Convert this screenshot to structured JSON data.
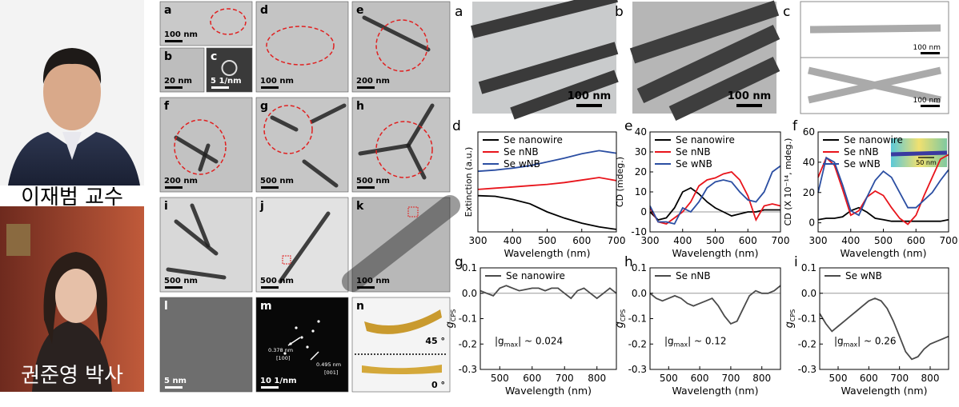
{
  "portraits": [
    {
      "caption": "이재범 교수"
    },
    {
      "caption": "권준영 박사"
    }
  ],
  "micrographs": [
    {
      "panel": "a",
      "scale": "100 nm"
    },
    {
      "panel": "b",
      "scale": "20 nm"
    },
    {
      "panel": "c",
      "scale": "5 1/nm"
    },
    {
      "panel": "d",
      "scale": "100 nm"
    },
    {
      "panel": "e",
      "scale": "200 nm"
    },
    {
      "panel": "f",
      "scale": "200 nm"
    },
    {
      "panel": "g",
      "scale": "500 nm"
    },
    {
      "panel": "h",
      "scale": "500 nm"
    },
    {
      "panel": "i",
      "scale": "500 nm"
    },
    {
      "panel": "j",
      "scale": "500 nm"
    },
    {
      "panel": "k",
      "scale": "100 nm"
    },
    {
      "panel": "l",
      "scale": "5 nm"
    },
    {
      "panel": "m",
      "scale": "10 1/nm",
      "annotations": [
        "0.378 nm",
        "[100]",
        "0.495 nm",
        "[001]"
      ]
    },
    {
      "panel": "n",
      "annotations": [
        "45 °",
        "0 °"
      ]
    }
  ],
  "images": [
    {
      "panel": "a",
      "scales": [
        "100 nm"
      ]
    },
    {
      "panel": "b",
      "scales": [
        "100 nm"
      ]
    },
    {
      "panel": "c",
      "scales": [
        "100 nm",
        "100 nm"
      ]
    }
  ],
  "chart_data": [
    {
      "type": "line",
      "panel": "d",
      "x_label": "Wavelength (nm)",
      "y_label": "Extinction (a.u.)",
      "x": [
        300,
        350,
        400,
        450,
        500,
        550,
        600,
        650,
        700
      ],
      "xlim": [
        300,
        700
      ],
      "xticks": [
        300,
        400,
        500,
        600,
        700
      ],
      "ylim": [
        0,
        1.6
      ],
      "series": [
        {
          "name": "Se nanowire",
          "color": "#000000",
          "values": [
            0.58,
            0.57,
            0.52,
            0.45,
            0.32,
            0.22,
            0.14,
            0.08,
            0.04
          ]
        },
        {
          "name": "Se nNB",
          "color": "#e8141b",
          "values": [
            0.68,
            0.7,
            0.72,
            0.74,
            0.76,
            0.79,
            0.83,
            0.87,
            0.82
          ]
        },
        {
          "name": "Se wNB",
          "color": "#2b4ea2",
          "values": [
            0.97,
            0.99,
            1.02,
            1.06,
            1.12,
            1.18,
            1.25,
            1.3,
            1.26
          ]
        }
      ]
    },
    {
      "type": "line",
      "panel": "e",
      "x_label": "Wavelength (nm)",
      "y_label": "CD (mdeg.)",
      "zero_line": true,
      "x": [
        300,
        325,
        350,
        375,
        400,
        425,
        450,
        475,
        500,
        525,
        550,
        575,
        600,
        625,
        650,
        675,
        700
      ],
      "xlim": [
        300,
        700
      ],
      "xticks": [
        300,
        400,
        500,
        600,
        700
      ],
      "ylim": [
        -10,
        40
      ],
      "yticks": [
        -10,
        0,
        10,
        20,
        30,
        40
      ],
      "series": [
        {
          "name": "Se nanowire",
          "color": "#000000",
          "values": [
            0,
            -4,
            -3,
            2,
            10,
            12,
            9,
            5,
            2,
            0,
            -2,
            -1,
            0,
            0,
            1,
            1,
            1
          ]
        },
        {
          "name": "Se nNB",
          "color": "#e8141b",
          "values": [
            2,
            -5,
            -6,
            -3,
            0,
            5,
            13,
            16,
            17,
            19,
            20,
            16,
            8,
            -4,
            3,
            4,
            3
          ]
        },
        {
          "name": "Se wNB",
          "color": "#2b4ea2",
          "values": [
            3,
            -5,
            -5,
            -6,
            2,
            0,
            5,
            12,
            15,
            16,
            15,
            10,
            6,
            5,
            10,
            20,
            23
          ]
        }
      ]
    },
    {
      "type": "line",
      "panel": "f",
      "x_label": "Wavelength (nm)",
      "y_label": "CD (X 10⁻¹⁴, mdeg.)",
      "inset_label": "50 nm",
      "x": [
        300,
        325,
        350,
        375,
        400,
        425,
        450,
        475,
        500,
        525,
        550,
        575,
        600,
        625,
        650,
        675,
        700
      ],
      "xlim": [
        300,
        700
      ],
      "xticks": [
        300,
        400,
        500,
        600,
        700
      ],
      "ylim": [
        -6,
        60
      ],
      "yticks": [
        0,
        20,
        40,
        60
      ],
      "series": [
        {
          "name": "Se nanowire",
          "color": "#000000",
          "values": [
            2,
            3,
            3,
            4,
            8,
            10,
            7,
            3,
            2,
            1,
            1,
            1,
            1,
            1,
            1,
            1,
            2
          ]
        },
        {
          "name": "Se nNB",
          "color": "#e8141b",
          "values": [
            30,
            43,
            38,
            22,
            5,
            8,
            17,
            21,
            18,
            10,
            3,
            -1,
            5,
            18,
            30,
            42,
            45
          ]
        },
        {
          "name": "Se wNB",
          "color": "#2b4ea2",
          "values": [
            20,
            43,
            40,
            25,
            8,
            5,
            17,
            28,
            34,
            30,
            20,
            10,
            10,
            15,
            20,
            28,
            35
          ]
        }
      ]
    },
    {
      "type": "line",
      "panel": "g",
      "x_label": "Wavelength (nm)",
      "y_label": "g",
      "y_label_sub": "CPS",
      "zero_line": true,
      "annotation": [
        "|g",
        "max",
        "| ~ 0.024"
      ],
      "x": [
        440,
        460,
        480,
        500,
        520,
        540,
        560,
        580,
        600,
        620,
        640,
        660,
        680,
        700,
        720,
        740,
        760,
        780,
        800,
        820,
        840,
        860
      ],
      "xlim": [
        440,
        860
      ],
      "xticks": [
        500,
        600,
        700,
        800
      ],
      "ylim": [
        -0.3,
        0.1
      ],
      "yticks": [
        -0.3,
        -0.2,
        -0.1,
        {
          "value": 0,
          "label": "0.0"
        },
        0.1
      ],
      "series": [
        {
          "name": "Se nanowire",
          "color": "#4a4a4a",
          "values": [
            0.01,
            0.0,
            -0.01,
            0.02,
            0.03,
            0.02,
            0.01,
            0.015,
            0.02,
            0.02,
            0.01,
            0.02,
            0.02,
            0.0,
            -0.02,
            0.01,
            0.02,
            0.0,
            -0.02,
            0.0,
            0.02,
            0.0
          ]
        }
      ]
    },
    {
      "type": "line",
      "panel": "h",
      "x_label": "Wavelength (nm)",
      "y_label": "g",
      "y_label_sub": "CPS",
      "zero_line": true,
      "annotation": [
        "|g",
        "max",
        "| ~ 0.12"
      ],
      "x": [
        440,
        460,
        480,
        500,
        520,
        540,
        560,
        580,
        600,
        620,
        640,
        660,
        680,
        700,
        720,
        740,
        760,
        780,
        800,
        820,
        840,
        860
      ],
      "xlim": [
        440,
        860
      ],
      "xticks": [
        500,
        600,
        700,
        800
      ],
      "ylim": [
        -0.3,
        0.1
      ],
      "yticks": [
        -0.3,
        -0.2,
        -0.1,
        {
          "value": 0,
          "label": "0.0"
        },
        0.1
      ],
      "series": [
        {
          "name": "Se nNB",
          "color": "#4a4a4a",
          "values": [
            0.0,
            -0.02,
            -0.03,
            -0.02,
            -0.01,
            -0.02,
            -0.04,
            -0.05,
            -0.04,
            -0.03,
            -0.02,
            -0.05,
            -0.09,
            -0.12,
            -0.11,
            -0.06,
            -0.01,
            0.01,
            0.0,
            0.0,
            0.01,
            0.03
          ]
        }
      ]
    },
    {
      "type": "line",
      "panel": "i",
      "x_label": "Wavelength (nm)",
      "y_label": "g",
      "y_label_sub": "CPS",
      "zero_line": true,
      "annotation": [
        "|g",
        "max",
        "| ~ 0.26"
      ],
      "x": [
        440,
        460,
        480,
        500,
        520,
        540,
        560,
        580,
        600,
        620,
        640,
        660,
        680,
        700,
        720,
        740,
        760,
        780,
        800,
        820,
        840,
        860
      ],
      "xlim": [
        440,
        860
      ],
      "xticks": [
        500,
        600,
        700,
        800
      ],
      "ylim": [
        -0.3,
        0.1
      ],
      "yticks": [
        -0.3,
        -0.2,
        -0.1,
        {
          "value": 0,
          "label": "0.0"
        },
        0.1
      ],
      "series": [
        {
          "name": "Se wNB",
          "color": "#4a4a4a",
          "values": [
            -0.08,
            -0.12,
            -0.15,
            -0.13,
            -0.11,
            -0.09,
            -0.07,
            -0.05,
            -0.03,
            -0.02,
            -0.03,
            -0.06,
            -0.11,
            -0.17,
            -0.23,
            -0.26,
            -0.25,
            -0.22,
            -0.2,
            -0.19,
            -0.18,
            -0.17
          ]
        }
      ]
    }
  ]
}
